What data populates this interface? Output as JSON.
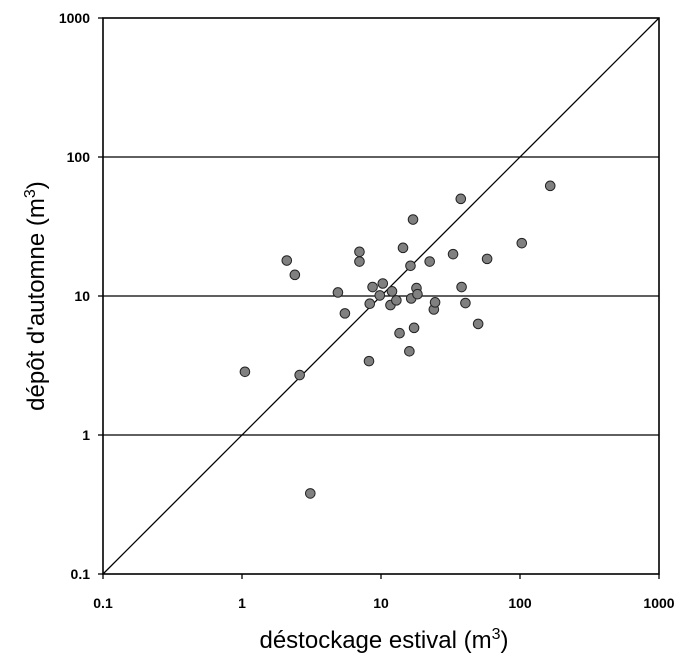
{
  "chart_data": {
    "type": "scatter",
    "xlabel": "déstockage estival (m",
    "xlabel_sup": "3",
    "xlabel_close": ")",
    "ylabel": "dépôt d'automne (m",
    "ylabel_sup": "3",
    "ylabel_close": ")",
    "x_scale": "log",
    "y_scale": "log",
    "xlim": [
      0.1,
      1000
    ],
    "ylim": [
      0.1,
      1000
    ],
    "x_ticks": [
      {
        "value": 0.1,
        "label": "0.1"
      },
      {
        "value": 1,
        "label": "1"
      },
      {
        "value": 10,
        "label": "10"
      },
      {
        "value": 100,
        "label": "100"
      },
      {
        "value": 1000,
        "label": "1000"
      }
    ],
    "y_ticks": [
      {
        "value": 0.1,
        "label": "0.1"
      },
      {
        "value": 1,
        "label": "1"
      },
      {
        "value": 10,
        "label": "10"
      },
      {
        "value": 100,
        "label": "100"
      },
      {
        "value": 1000,
        "label": "1000"
      }
    ],
    "horizontal_gridlines_at": [
      1,
      10,
      100
    ],
    "reference_line": "1:1",
    "legend": "none",
    "marker_color": "#808080",
    "marker_edge_color": "#222222",
    "points": [
      {
        "x": 1.05,
        "y": 2.85
      },
      {
        "x": 2.1,
        "y": 18
      },
      {
        "x": 2.4,
        "y": 14.2
      },
      {
        "x": 2.6,
        "y": 2.7
      },
      {
        "x": 3.1,
        "y": 0.38
      },
      {
        "x": 4.9,
        "y": 10.6
      },
      {
        "x": 5.5,
        "y": 7.5
      },
      {
        "x": 7,
        "y": 20.8
      },
      {
        "x": 7,
        "y": 17.7
      },
      {
        "x": 8.2,
        "y": 3.4
      },
      {
        "x": 8.3,
        "y": 8.8
      },
      {
        "x": 8.7,
        "y": 11.6
      },
      {
        "x": 9.8,
        "y": 10.1
      },
      {
        "x": 10.3,
        "y": 12.3
      },
      {
        "x": 11.7,
        "y": 8.6
      },
      {
        "x": 12,
        "y": 10.8
      },
      {
        "x": 12.9,
        "y": 9.3
      },
      {
        "x": 13.6,
        "y": 5.4
      },
      {
        "x": 14.4,
        "y": 22.2
      },
      {
        "x": 16,
        "y": 4
      },
      {
        "x": 16.3,
        "y": 16.5
      },
      {
        "x": 16.5,
        "y": 9.6
      },
      {
        "x": 17,
        "y": 35.5
      },
      {
        "x": 17.3,
        "y": 5.9
      },
      {
        "x": 18,
        "y": 11.4
      },
      {
        "x": 18.3,
        "y": 10.3
      },
      {
        "x": 22.4,
        "y": 17.7
      },
      {
        "x": 24,
        "y": 8
      },
      {
        "x": 24.5,
        "y": 9
      },
      {
        "x": 33,
        "y": 20
      },
      {
        "x": 37.5,
        "y": 50
      },
      {
        "x": 38,
        "y": 11.6
      },
      {
        "x": 40.5,
        "y": 8.9
      },
      {
        "x": 50,
        "y": 6.3
      },
      {
        "x": 58,
        "y": 18.5
      },
      {
        "x": 103,
        "y": 24
      },
      {
        "x": 165,
        "y": 62
      }
    ]
  }
}
